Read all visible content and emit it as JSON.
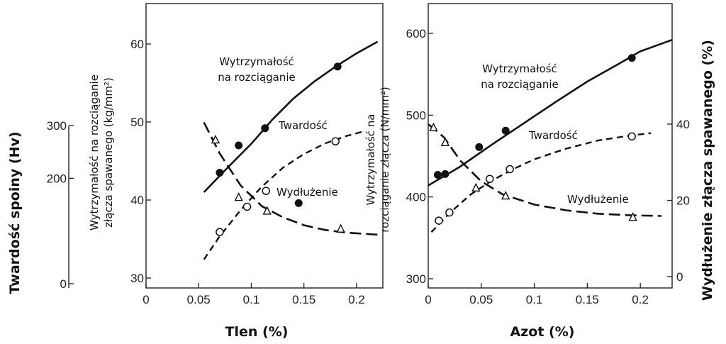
{
  "left_axis_label": "Twardość spoiny (Hv)",
  "right_axis_label": "Wydłużenie złącza spawanego (%)",
  "chart_data": [
    {
      "type": "line",
      "xlabel": "Tlen (%)",
      "ylabel_lines": [
        "Wytrzymałość na rozciąganie",
        "złącza spawanego (kg/mm²)"
      ],
      "xlim": [
        0,
        0.225
      ],
      "ylim": [
        30,
        65
      ],
      "x_ticks": [
        {
          "v": 0,
          "label": "0"
        },
        {
          "v": 0.05,
          "label": "0.05"
        },
        {
          "v": 0.1,
          "label": "0.1"
        },
        {
          "v": 0.15,
          "label": "0.15"
        },
        {
          "v": 0.2,
          "label": "0.2"
        }
      ],
      "y_ticks": [
        {
          "v": 30,
          "label": "30"
        },
        {
          "v": 40,
          "label": "40"
        },
        {
          "v": 50,
          "label": "50"
        },
        {
          "v": 60,
          "label": "60"
        }
      ],
      "hardness_axis": {
        "lim": [
          0,
          300
        ],
        "ticks": [
          {
            "v": 0,
            "label": "0"
          },
          {
            "v": 200,
            "label": "200"
          },
          {
            "v": 300,
            "label": "300"
          }
        ]
      },
      "series": [
        {
          "name": "Wytrzymałość na rozciąganie",
          "label_lines": [
            "Wytrzymałość",
            "na rozciąganie"
          ],
          "axis": "primary",
          "marker": "filled-circle",
          "line": "solid",
          "points": [
            [
              0.07,
              43.5
            ],
            [
              0.088,
              47.0
            ],
            [
              0.113,
              49.2
            ],
            [
              0.145,
              39.6
            ],
            [
              0.182,
              57.1
            ]
          ],
          "curve": [
            [
              0.055,
              41.0
            ],
            [
              0.08,
              44.5
            ],
            [
              0.1,
              47.2
            ],
            [
              0.12,
              50.3
            ],
            [
              0.14,
              53.0
            ],
            [
              0.16,
              55.2
            ],
            [
              0.18,
              57.1
            ],
            [
              0.2,
              58.8
            ],
            [
              0.22,
              60.3
            ]
          ]
        },
        {
          "name": "Twardość",
          "label_lines": [
            "Twardość"
          ],
          "axis": "hardness",
          "marker": "open-circle",
          "line": "dashed",
          "points": [
            [
              0.07,
              98
            ],
            [
              0.096,
              146
            ],
            [
              0.114,
              176
            ],
            [
              0.18,
              270
            ]
          ],
          "curve": [
            [
              0.055,
              46
            ],
            [
              0.07,
              90
            ],
            [
              0.09,
              140
            ],
            [
              0.11,
              184
            ],
            [
              0.13,
              220
            ],
            [
              0.15,
              246
            ],
            [
              0.17,
              266
            ],
            [
              0.19,
              280
            ],
            [
              0.205,
              288
            ]
          ]
        },
        {
          "name": "Wydłużenie",
          "label_lines": [
            "Wydłużenie"
          ],
          "axis": "hardness",
          "marker": "open-triangle",
          "line": "long-dashed",
          "points": [
            [
              0.066,
              273
            ],
            [
              0.088,
              164
            ],
            [
              0.115,
              138
            ],
            [
              0.185,
              104
            ]
          ],
          "curve": [
            [
              0.055,
              306
            ],
            [
              0.07,
              247
            ],
            [
              0.09,
              186
            ],
            [
              0.11,
              147
            ],
            [
              0.13,
              126
            ],
            [
              0.15,
              111
            ],
            [
              0.17,
              102
            ],
            [
              0.19,
              97
            ],
            [
              0.22,
              93
            ]
          ]
        }
      ]
    },
    {
      "type": "line",
      "xlabel": "Azot (%)",
      "ylabel_lines": [
        "Wytrzymałość na",
        "rozciąganie złącza (N/mm²)"
      ],
      "xlim": [
        0,
        0.23
      ],
      "ylim": [
        290,
        620
      ],
      "x_ticks": [
        {
          "v": 0,
          "label": "0"
        },
        {
          "v": 0.05,
          "label": "0.05"
        },
        {
          "v": 0.1,
          "label": "0.1"
        },
        {
          "v": 0.15,
          "label": "0.15"
        },
        {
          "v": 0.2,
          "label": "0.2"
        }
      ],
      "y_ticks": [
        {
          "v": 300,
          "label": "300"
        },
        {
          "v": 400,
          "label": "400"
        },
        {
          "v": 500,
          "label": "500"
        },
        {
          "v": 600,
          "label": "600"
        }
      ],
      "elongation_axis": {
        "lim": [
          0,
          48
        ],
        "ticks": [
          {
            "v": 0,
            "label": "0"
          },
          {
            "v": 20,
            "label": "20"
          },
          {
            "v": 40,
            "label": "40"
          }
        ]
      },
      "series": [
        {
          "name": "Wytrzymałość na rozciąganie",
          "label_lines": [
            "Wytrzymałość",
            "na rozciąganie"
          ],
          "axis": "primary",
          "marker": "filled-circle",
          "line": "solid",
          "points": [
            [
              0.009,
              427
            ],
            [
              0.016,
              428
            ],
            [
              0.048,
              461
            ],
            [
              0.073,
              481
            ],
            [
              0.192,
              570
            ]
          ],
          "curve": [
            [
              0.0,
              414
            ],
            [
              0.03,
              437
            ],
            [
              0.06,
              464
            ],
            [
              0.09,
              490
            ],
            [
              0.12,
              516
            ],
            [
              0.15,
              541
            ],
            [
              0.18,
              563
            ],
            [
              0.2,
              578
            ],
            [
              0.23,
              592
            ]
          ]
        },
        {
          "name": "Twardość",
          "label_lines": [
            "Twardość"
          ],
          "axis": "primary",
          "marker": "open-circle",
          "line": "dashed",
          "points": [
            [
              0.01,
              371
            ],
            [
              0.02,
              381
            ],
            [
              0.058,
              422
            ],
            [
              0.077,
              434
            ],
            [
              0.192,
              474
            ]
          ],
          "curve": [
            [
              0.003,
              357
            ],
            [
              0.02,
              380
            ],
            [
              0.04,
              403
            ],
            [
              0.06,
              420
            ],
            [
              0.08,
              434
            ],
            [
              0.1,
              446
            ],
            [
              0.13,
              459
            ],
            [
              0.16,
              469
            ],
            [
              0.19,
              475
            ],
            [
              0.21,
              478
            ]
          ]
        },
        {
          "name": "Wydłużenie",
          "label_lines": [
            "Wydłużenie"
          ],
          "axis": "elongation",
          "marker": "open-triangle",
          "line": "long-dashed",
          "points": [
            [
              0.005,
              39.1
            ],
            [
              0.016,
              35.2
            ],
            [
              0.045,
              23.3
            ],
            [
              0.073,
              21.2
            ],
            [
              0.193,
              15.6
            ]
          ],
          "curve": [
            [
              0.0,
              40.0
            ],
            [
              0.015,
              36.5
            ],
            [
              0.03,
              30.5
            ],
            [
              0.05,
              25.0
            ],
            [
              0.07,
              21.6
            ],
            [
              0.1,
              18.9
            ],
            [
              0.13,
              17.4
            ],
            [
              0.16,
              16.5
            ],
            [
              0.19,
              16.1
            ],
            [
              0.22,
              15.9
            ]
          ]
        }
      ]
    }
  ]
}
